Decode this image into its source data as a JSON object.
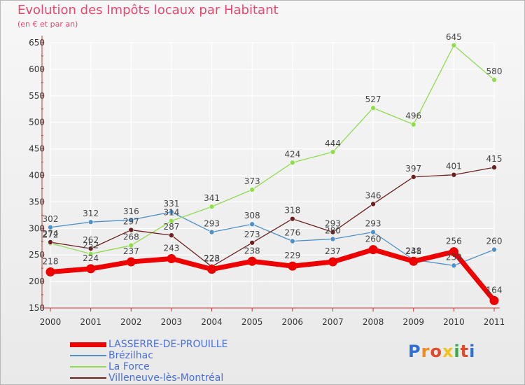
{
  "header": {
    "title": "Evolution des Impôts locaux par Habitant",
    "subtitle": "(en € et par an)"
  },
  "logo": {
    "text": "Proxiti"
  },
  "colors": {
    "title": "#e8486d",
    "axis": "#cc3333",
    "grid": "#ffffff",
    "legend_text": "#4a6fd8"
  },
  "chart_data": {
    "type": "line",
    "title": "Evolution des Impôts locaux par Habitant",
    "subtitle": "(en € et par an)",
    "x": [
      "2000",
      "2001",
      "2002",
      "2003",
      "2004",
      "2005",
      "2006",
      "2007",
      "2008",
      "2009",
      "2010",
      "2011"
    ],
    "ylim": [
      150,
      650
    ],
    "yticks": [
      150,
      200,
      250,
      300,
      350,
      400,
      450,
      500,
      550,
      600,
      650
    ],
    "grid": true,
    "legend_position": "bottom-left",
    "series": [
      {
        "name": "LASSERRE-DE-PROUILLE",
        "color": "#ee0000",
        "values": [
          218,
          224,
          237,
          243,
          223,
          238,
          229,
          237,
          260,
          238,
          256,
          164
        ]
      },
      {
        "name": "Brézilhac",
        "color": "#4f91c6",
        "values": [
          302,
          312,
          316,
          331,
          293,
          308,
          276,
          280,
          293,
          241,
          230,
          260
        ]
      },
      {
        "name": "La Force",
        "color": "#8fdc4f",
        "values": [
          272,
          252,
          268,
          314,
          341,
          373,
          424,
          444,
          527,
          496,
          645,
          580
        ]
      },
      {
        "name": "Villeneuve-lès-Montréal",
        "color": "#6b1f1f",
        "values": [
          274,
          262,
          297,
          287,
          228,
          273,
          318,
          293,
          346,
          397,
          401,
          415
        ]
      }
    ]
  }
}
